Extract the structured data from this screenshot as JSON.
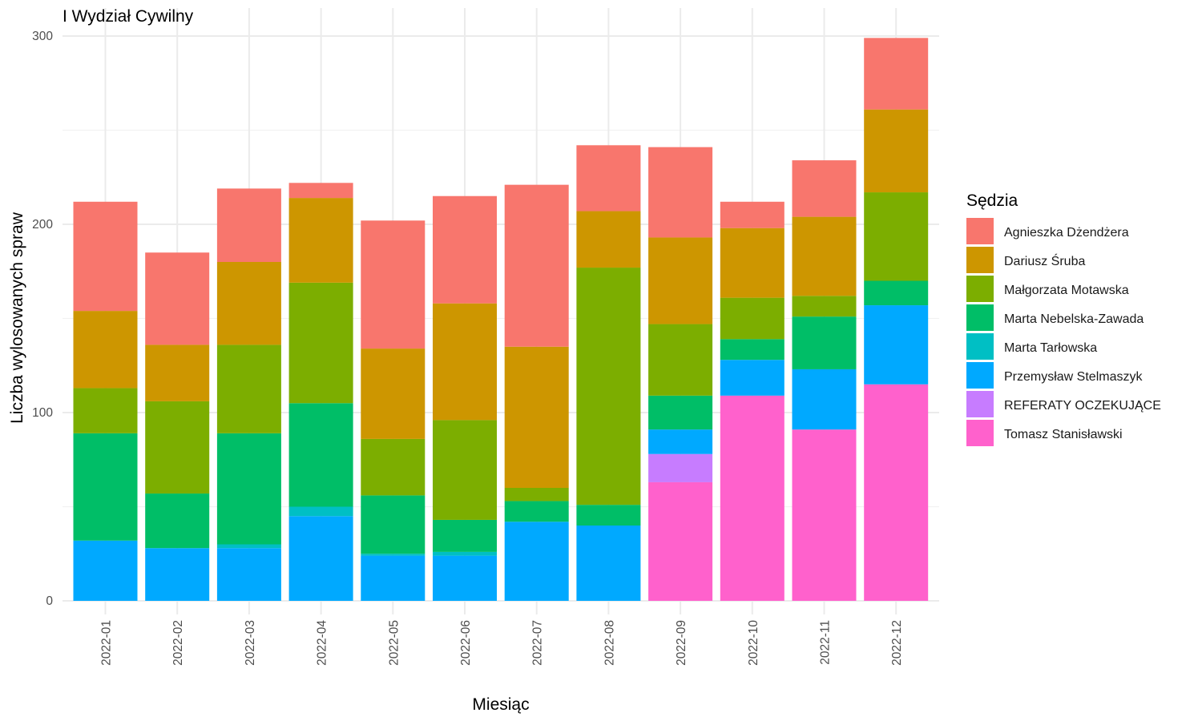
{
  "chart_data": {
    "type": "bar",
    "stacked": true,
    "title": "I Wydział Cywilny",
    "xlabel": "Miesiąc",
    "ylabel": "Liczba wylosowanych spraw",
    "ylim": [
      0,
      300
    ],
    "yticks": [
      "0",
      "100",
      "200",
      "300"
    ],
    "grid": true,
    "legend_title": "Sędzia",
    "legend_position": "right",
    "categories": [
      "2022-01",
      "2022-02",
      "2022-03",
      "2022-04",
      "2022-05",
      "2022-06",
      "2022-07",
      "2022-08",
      "2022-09",
      "2022-10",
      "2022-11",
      "2022-12"
    ],
    "series": [
      {
        "name": "Agnieszka Dżendżera",
        "color": "#F8766D",
        "values": [
          58,
          49,
          39,
          8,
          68,
          57,
          86,
          35,
          48,
          14,
          30,
          38
        ]
      },
      {
        "name": "Dariusz Śruba",
        "color": "#CD9600",
        "values": [
          41,
          30,
          44,
          45,
          48,
          62,
          75,
          30,
          46,
          37,
          42,
          44
        ]
      },
      {
        "name": "Małgorzata Motawska",
        "color": "#7CAE00",
        "values": [
          24,
          49,
          47,
          64,
          30,
          53,
          7,
          126,
          38,
          22,
          11,
          47
        ]
      },
      {
        "name": "Marta Nebelska-Zawada",
        "color": "#00BE67",
        "values": [
          57,
          29,
          59,
          55,
          31,
          17,
          11,
          11,
          18,
          11,
          28,
          13
        ]
      },
      {
        "name": "Marta Tarłowska",
        "color": "#00BFC4",
        "values": [
          0,
          0,
          2,
          5,
          1,
          2,
          0,
          0,
          0,
          0,
          0,
          0
        ]
      },
      {
        "name": "Przemysław Stelmaszyk",
        "color": "#00A9FF",
        "values": [
          32,
          28,
          28,
          45,
          24,
          24,
          42,
          40,
          13,
          19,
          32,
          42
        ]
      },
      {
        "name": "REFERATY OCZEKUJĄCE",
        "color": "#C77CFF",
        "values": [
          0,
          0,
          0,
          0,
          0,
          0,
          0,
          0,
          15,
          0,
          0,
          0
        ]
      },
      {
        "name": "Tomasz Stanisławski",
        "color": "#FF61CC",
        "values": [
          0,
          0,
          0,
          0,
          0,
          0,
          0,
          0,
          63,
          109,
          91,
          115
        ]
      }
    ]
  }
}
